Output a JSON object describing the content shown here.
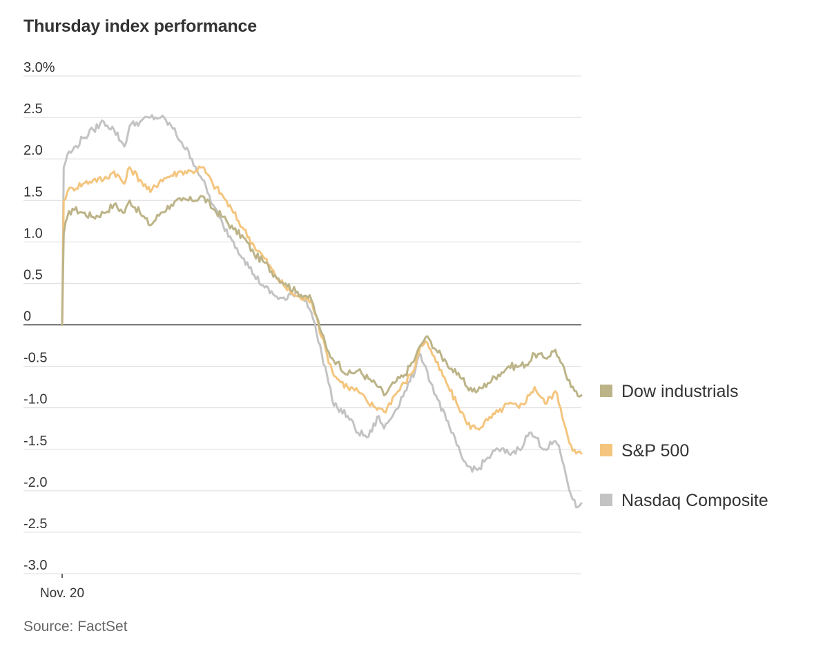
{
  "chart_data": {
    "type": "line",
    "title": "Thursday index performance",
    "source": "Source: FactSet",
    "xlabel": "",
    "ylabel": "",
    "x_tick_labels": [
      "Nov. 20"
    ],
    "y_tick_labels": [
      "3.0%",
      "2.5",
      "2.0",
      "1.5",
      "1.0",
      "0.5",
      "0",
      "-0.5",
      "-1.0",
      "-1.5",
      "-2.0",
      "-2.5",
      "-3.0"
    ],
    "y_tick_values": [
      3.0,
      2.5,
      2.0,
      1.5,
      1.0,
      0.5,
      0,
      -0.5,
      -1.0,
      -1.5,
      -2.0,
      -2.5,
      -3.0
    ],
    "ylim": [
      -3.0,
      3.0
    ],
    "xlim": [
      0,
      100
    ],
    "grid": true,
    "legend_position": "right",
    "series": [
      {
        "name": "Dow industrials",
        "color": "#bcb488",
        "points": [
          [
            0,
            0
          ],
          [
            0.3,
            1.1
          ],
          [
            1,
            1.3
          ],
          [
            2,
            1.4
          ],
          [
            4,
            1.35
          ],
          [
            6,
            1.3
          ],
          [
            8,
            1.35
          ],
          [
            10,
            1.45
          ],
          [
            12,
            1.35
          ],
          [
            13,
            1.5
          ],
          [
            15,
            1.35
          ],
          [
            17,
            1.2
          ],
          [
            19,
            1.35
          ],
          [
            21,
            1.45
          ],
          [
            23,
            1.5
          ],
          [
            25,
            1.5
          ],
          [
            27,
            1.55
          ],
          [
            29,
            1.4
          ],
          [
            31,
            1.3
          ],
          [
            33,
            1.15
          ],
          [
            35,
            1.05
          ],
          [
            37,
            0.85
          ],
          [
            39,
            0.75
          ],
          [
            41,
            0.6
          ],
          [
            43,
            0.5
          ],
          [
            45,
            0.4
          ],
          [
            47,
            0.35
          ],
          [
            48,
            0.3
          ],
          [
            49,
            0.1
          ],
          [
            50,
            -0.1
          ],
          [
            51,
            -0.3
          ],
          [
            52,
            -0.4
          ],
          [
            53,
            -0.45
          ],
          [
            55,
            -0.6
          ],
          [
            57,
            -0.55
          ],
          [
            59,
            -0.65
          ],
          [
            61,
            -0.75
          ],
          [
            62,
            -0.85
          ],
          [
            64,
            -0.7
          ],
          [
            66,
            -0.6
          ],
          [
            68,
            -0.4
          ],
          [
            69,
            -0.25
          ],
          [
            70,
            -0.15
          ],
          [
            71,
            -0.2
          ],
          [
            72,
            -0.3
          ],
          [
            74,
            -0.45
          ],
          [
            76,
            -0.6
          ],
          [
            77,
            -0.65
          ],
          [
            78,
            -0.75
          ],
          [
            80,
            -0.8
          ],
          [
            82,
            -0.7
          ],
          [
            84,
            -0.6
          ],
          [
            86,
            -0.5
          ],
          [
            88,
            -0.5
          ],
          [
            90,
            -0.45
          ],
          [
            91,
            -0.35
          ],
          [
            93,
            -0.4
          ],
          [
            95,
            -0.3
          ],
          [
            96,
            -0.45
          ],
          [
            97,
            -0.6
          ],
          [
            98,
            -0.75
          ],
          [
            99,
            -0.8
          ],
          [
            100,
            -0.85
          ]
        ]
      },
      {
        "name": "S&P 500",
        "color": "#f4c57e",
        "points": [
          [
            0,
            0
          ],
          [
            0.3,
            1.5
          ],
          [
            1,
            1.6
          ],
          [
            2,
            1.65
          ],
          [
            4,
            1.7
          ],
          [
            6,
            1.75
          ],
          [
            8,
            1.75
          ],
          [
            10,
            1.85
          ],
          [
            12,
            1.7
          ],
          [
            13,
            1.9
          ],
          [
            15,
            1.75
          ],
          [
            17,
            1.6
          ],
          [
            19,
            1.75
          ],
          [
            21,
            1.8
          ],
          [
            23,
            1.85
          ],
          [
            25,
            1.85
          ],
          [
            27,
            1.9
          ],
          [
            29,
            1.7
          ],
          [
            31,
            1.55
          ],
          [
            33,
            1.35
          ],
          [
            35,
            1.15
          ],
          [
            37,
            0.95
          ],
          [
            39,
            0.8
          ],
          [
            41,
            0.6
          ],
          [
            43,
            0.45
          ],
          [
            45,
            0.35
          ],
          [
            47,
            0.3
          ],
          [
            48,
            0.3
          ],
          [
            49,
            0.1
          ],
          [
            50,
            -0.15
          ],
          [
            51,
            -0.35
          ],
          [
            52,
            -0.55
          ],
          [
            53,
            -0.65
          ],
          [
            55,
            -0.75
          ],
          [
            57,
            -0.8
          ],
          [
            59,
            -0.95
          ],
          [
            61,
            -1.0
          ],
          [
            62,
            -1.05
          ],
          [
            64,
            -0.85
          ],
          [
            66,
            -0.7
          ],
          [
            68,
            -0.5
          ],
          [
            69,
            -0.25
          ],
          [
            70,
            -0.2
          ],
          [
            71,
            -0.3
          ],
          [
            72,
            -0.45
          ],
          [
            74,
            -0.7
          ],
          [
            76,
            -0.95
          ],
          [
            77,
            -1.05
          ],
          [
            78,
            -1.2
          ],
          [
            80,
            -1.25
          ],
          [
            82,
            -1.15
          ],
          [
            84,
            -1.05
          ],
          [
            86,
            -0.95
          ],
          [
            88,
            -1.0
          ],
          [
            90,
            -0.85
          ],
          [
            91,
            -0.75
          ],
          [
            93,
            -0.95
          ],
          [
            95,
            -0.8
          ],
          [
            96,
            -1.0
          ],
          [
            97,
            -1.25
          ],
          [
            98,
            -1.45
          ],
          [
            99,
            -1.55
          ],
          [
            100,
            -1.55
          ]
        ]
      },
      {
        "name": "Nasdaq Composite",
        "color": "#c3c3c3",
        "points": [
          [
            0,
            0
          ],
          [
            0.3,
            1.9
          ],
          [
            1,
            2.05
          ],
          [
            2,
            2.1
          ],
          [
            4,
            2.25
          ],
          [
            6,
            2.35
          ],
          [
            8,
            2.45
          ],
          [
            10,
            2.35
          ],
          [
            12,
            2.15
          ],
          [
            13,
            2.4
          ],
          [
            15,
            2.45
          ],
          [
            17,
            2.5
          ],
          [
            19,
            2.5
          ],
          [
            21,
            2.4
          ],
          [
            23,
            2.2
          ],
          [
            25,
            2.0
          ],
          [
            27,
            1.75
          ],
          [
            29,
            1.45
          ],
          [
            31,
            1.2
          ],
          [
            33,
            1.0
          ],
          [
            35,
            0.8
          ],
          [
            37,
            0.6
          ],
          [
            39,
            0.45
          ],
          [
            41,
            0.35
          ],
          [
            43,
            0.3
          ],
          [
            45,
            0.4
          ],
          [
            47,
            0.3
          ],
          [
            48,
            0.15
          ],
          [
            49,
            -0.1
          ],
          [
            50,
            -0.35
          ],
          [
            51,
            -0.6
          ],
          [
            52,
            -0.9
          ],
          [
            53,
            -1.0
          ],
          [
            55,
            -1.1
          ],
          [
            57,
            -1.3
          ],
          [
            59,
            -1.35
          ],
          [
            61,
            -1.1
          ],
          [
            62,
            -1.25
          ],
          [
            64,
            -1.05
          ],
          [
            66,
            -0.8
          ],
          [
            68,
            -0.55
          ],
          [
            69,
            -0.35
          ],
          [
            70,
            -0.5
          ],
          [
            71,
            -0.7
          ],
          [
            72,
            -0.85
          ],
          [
            74,
            -1.15
          ],
          [
            76,
            -1.45
          ],
          [
            77,
            -1.6
          ],
          [
            78,
            -1.7
          ],
          [
            80,
            -1.75
          ],
          [
            82,
            -1.6
          ],
          [
            84,
            -1.5
          ],
          [
            86,
            -1.55
          ],
          [
            88,
            -1.5
          ],
          [
            90,
            -1.3
          ],
          [
            91,
            -1.35
          ],
          [
            93,
            -1.5
          ],
          [
            95,
            -1.4
          ],
          [
            96,
            -1.55
          ],
          [
            97,
            -1.8
          ],
          [
            98,
            -2.05
          ],
          [
            99,
            -2.2
          ],
          [
            100,
            -2.15
          ]
        ]
      }
    ]
  }
}
